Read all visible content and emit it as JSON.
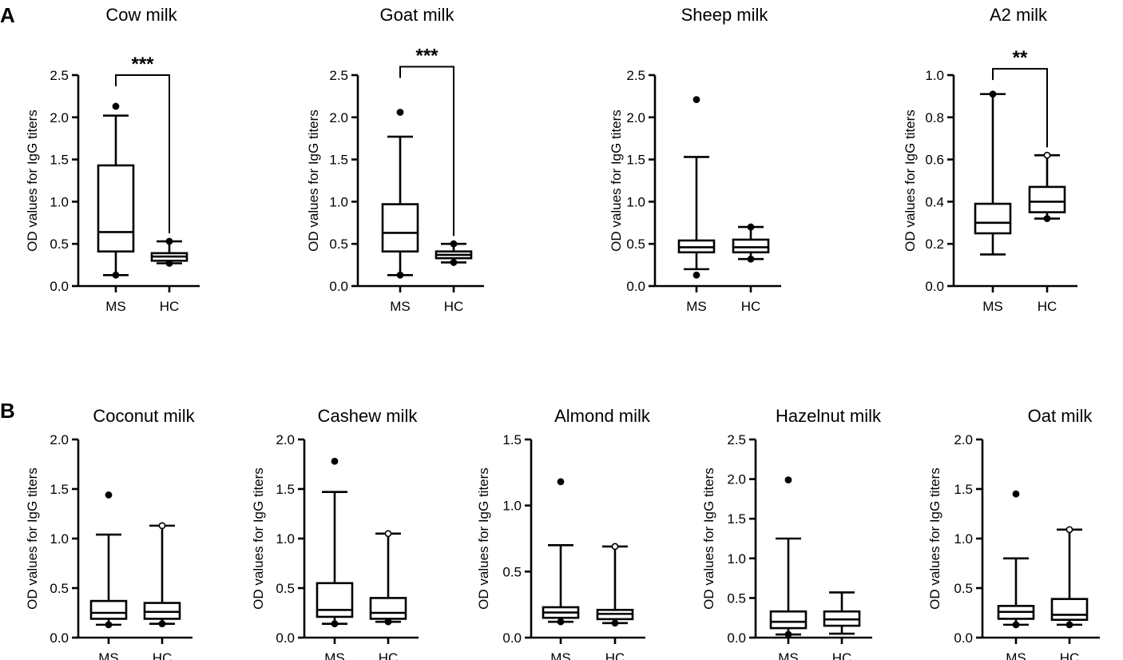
{
  "panels": {
    "A": "A",
    "B": "B"
  },
  "chart_data": [
    {
      "type": "box",
      "panel": "A",
      "title": "Cow milk",
      "ylabel": "OD values for IgG titers",
      "ylim": [
        0,
        2.5
      ],
      "yticks": [
        "0.0",
        "0.5",
        "1.0",
        "1.5",
        "2.0",
        "2.5"
      ],
      "categories": [
        "MS",
        "HC"
      ],
      "groups": [
        {
          "name": "MS",
          "whisker_low": 0.13,
          "q1": 0.41,
          "median": 0.64,
          "q3": 1.43,
          "whisker_high": 2.02,
          "outliers": [
            2.13
          ],
          "outlier_style": "filled",
          "low_marker": "filled"
        },
        {
          "name": "HC",
          "whisker_low": 0.27,
          "q1": 0.3,
          "median": 0.35,
          "q3": 0.39,
          "whisker_high": 0.53,
          "outliers": [],
          "low_marker": "filled",
          "high_marker": "filled"
        }
      ],
      "significance": {
        "label": "***",
        "y": 2.5
      }
    },
    {
      "type": "box",
      "panel": "A",
      "title": "Goat milk",
      "ylabel": "OD values for IgG titers",
      "ylim": [
        0,
        2.5
      ],
      "yticks": [
        "0.0",
        "0.5",
        "1.0",
        "1.5",
        "2.0",
        "2.5"
      ],
      "categories": [
        "MS",
        "HC"
      ],
      "groups": [
        {
          "name": "MS",
          "whisker_low": 0.13,
          "q1": 0.41,
          "median": 0.63,
          "q3": 0.97,
          "whisker_high": 1.77,
          "outliers": [
            2.06
          ],
          "outlier_style": "filled",
          "low_marker": "filled"
        },
        {
          "name": "HC",
          "whisker_low": 0.28,
          "q1": 0.33,
          "median": 0.37,
          "q3": 0.41,
          "whisker_high": 0.5,
          "outliers": [],
          "low_marker": "filled",
          "high_marker": "filled"
        }
      ],
      "significance": {
        "label": "***",
        "y": 2.6
      }
    },
    {
      "type": "box",
      "panel": "A",
      "title": "Sheep milk",
      "ylabel": "OD values for IgG titers",
      "ylim": [
        0,
        2.5
      ],
      "yticks": [
        "0.0",
        "0.5",
        "1.0",
        "1.5",
        "2.0",
        "2.5"
      ],
      "categories": [
        "MS",
        "HC"
      ],
      "groups": [
        {
          "name": "MS",
          "whisker_low": 0.2,
          "q1": 0.4,
          "median": 0.46,
          "q3": 0.54,
          "whisker_high": 1.53,
          "outliers": [
            2.21,
            0.13
          ],
          "outlier_style": "filled"
        },
        {
          "name": "HC",
          "whisker_low": 0.32,
          "q1": 0.4,
          "median": 0.46,
          "q3": 0.55,
          "whisker_high": 0.7,
          "outliers": [],
          "low_marker": "filled",
          "high_marker": "filled"
        }
      ]
    },
    {
      "type": "box",
      "panel": "A",
      "title": "A2 milk",
      "ylabel": "OD values for IgG titers",
      "ylim": [
        0,
        1.0
      ],
      "yticks": [
        "0.0",
        "0.2",
        "0.4",
        "0.6",
        "0.8",
        "1.0"
      ],
      "categories": [
        "MS",
        "HC"
      ],
      "groups": [
        {
          "name": "MS",
          "whisker_low": 0.15,
          "q1": 0.25,
          "median": 0.3,
          "q3": 0.39,
          "whisker_high": 0.91,
          "outliers": [],
          "high_marker": "filled"
        },
        {
          "name": "HC",
          "whisker_low": 0.32,
          "q1": 0.35,
          "median": 0.4,
          "q3": 0.47,
          "whisker_high": 0.62,
          "outliers": [],
          "low_marker": "filled",
          "high_marker": "open"
        }
      ],
      "significance": {
        "label": "**",
        "y": 1.03
      }
    },
    {
      "type": "box",
      "panel": "B",
      "title": "Coconut milk",
      "ylabel": "OD values for IgG titers",
      "ylim": [
        0,
        2.0
      ],
      "yticks": [
        "0.0",
        "0.5",
        "1.0",
        "1.5",
        "2.0"
      ],
      "categories": [
        "MS",
        "HC"
      ],
      "groups": [
        {
          "name": "MS",
          "whisker_low": 0.13,
          "q1": 0.19,
          "median": 0.25,
          "q3": 0.37,
          "whisker_high": 1.04,
          "outliers": [
            1.44
          ],
          "outlier_style": "filled",
          "low_marker": "filled"
        },
        {
          "name": "HC",
          "whisker_low": 0.14,
          "q1": 0.19,
          "median": 0.26,
          "q3": 0.35,
          "whisker_high": 1.13,
          "outliers": [],
          "low_marker": "filled",
          "high_marker": "open"
        }
      ]
    },
    {
      "type": "box",
      "panel": "B",
      "title": "Cashew milk",
      "ylabel": "OD values for IgG titers",
      "ylim": [
        0,
        2.0
      ],
      "yticks": [
        "0.0",
        "0.5",
        "1.0",
        "1.5",
        "2.0"
      ],
      "categories": [
        "MS",
        "HC"
      ],
      "groups": [
        {
          "name": "MS",
          "whisker_low": 0.14,
          "q1": 0.21,
          "median": 0.28,
          "q3": 0.55,
          "whisker_high": 1.47,
          "outliers": [
            1.78
          ],
          "outlier_style": "filled",
          "low_marker": "filled"
        },
        {
          "name": "HC",
          "whisker_low": 0.16,
          "q1": 0.19,
          "median": 0.25,
          "q3": 0.4,
          "whisker_high": 1.05,
          "outliers": [],
          "low_marker": "filled",
          "high_marker": "open"
        }
      ]
    },
    {
      "type": "box",
      "panel": "B",
      "title": "Almond milk",
      "ylabel": "OD values for IgG titers",
      "ylim": [
        0,
        1.5
      ],
      "yticks": [
        "0.0",
        "0.5",
        "1.0",
        "1.5"
      ],
      "categories": [
        "MS",
        "HC"
      ],
      "groups": [
        {
          "name": "MS",
          "whisker_low": 0.12,
          "q1": 0.15,
          "median": 0.19,
          "q3": 0.23,
          "whisker_high": 0.7,
          "outliers": [
            1.18
          ],
          "outlier_style": "filled",
          "low_marker": "filled"
        },
        {
          "name": "HC",
          "whisker_low": 0.11,
          "q1": 0.14,
          "median": 0.18,
          "q3": 0.21,
          "whisker_high": 0.69,
          "outliers": [],
          "low_marker": "filled",
          "high_marker": "open"
        }
      ]
    },
    {
      "type": "box",
      "panel": "B",
      "title": "Hazelnut milk",
      "ylabel": "OD values for IgG titers",
      "ylim": [
        0,
        2.5
      ],
      "yticks": [
        "0.0",
        "0.5",
        "1.0",
        "1.5",
        "2.0",
        "2.5"
      ],
      "categories": [
        "MS",
        "HC"
      ],
      "groups": [
        {
          "name": "MS",
          "whisker_low": 0.04,
          "q1": 0.12,
          "median": 0.2,
          "q3": 0.33,
          "whisker_high": 1.25,
          "outliers": [
            1.99
          ],
          "outlier_style": "filled",
          "low_marker": "filled"
        },
        {
          "name": "HC",
          "whisker_low": 0.05,
          "q1": 0.15,
          "median": 0.23,
          "q3": 0.33,
          "whisker_high": 0.57,
          "outliers": []
        }
      ]
    },
    {
      "type": "box",
      "panel": "B",
      "title": "Oat milk",
      "ylabel": "OD values for IgG titers",
      "ylim": [
        0,
        2.0
      ],
      "yticks": [
        "0.0",
        "0.5",
        "1.0",
        "1.5",
        "2.0"
      ],
      "categories": [
        "MS",
        "HC"
      ],
      "groups": [
        {
          "name": "MS",
          "whisker_low": 0.13,
          "q1": 0.19,
          "median": 0.26,
          "q3": 0.32,
          "whisker_high": 0.8,
          "outliers": [
            1.45
          ],
          "outlier_style": "filled",
          "low_marker": "filled"
        },
        {
          "name": "HC",
          "whisker_low": 0.13,
          "q1": 0.18,
          "median": 0.23,
          "q3": 0.39,
          "whisker_high": 1.09,
          "outliers": [],
          "low_marker": "filled",
          "high_marker": "open"
        }
      ]
    }
  ]
}
